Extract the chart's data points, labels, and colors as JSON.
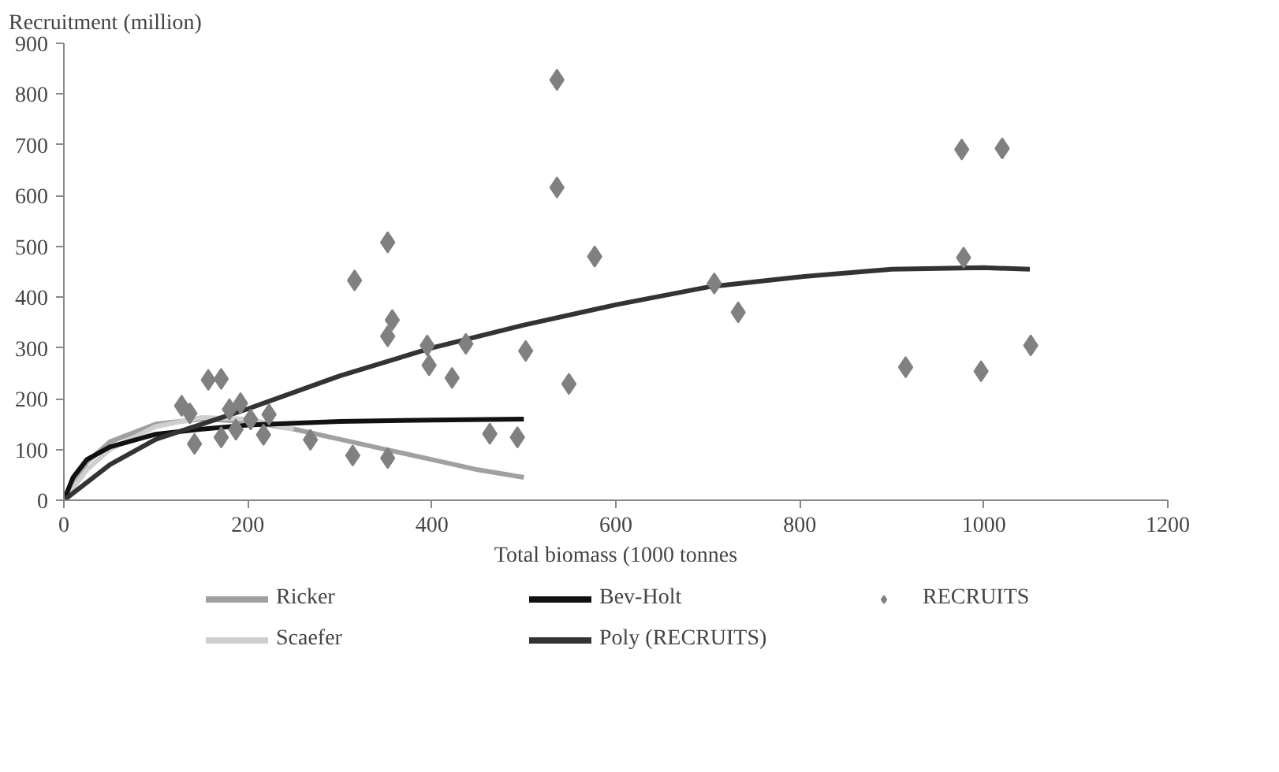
{
  "chart_data": {
    "type": "line",
    "xlabel": "Total biomass (1000 tonnes",
    "ylabel": "Recruitment (million)",
    "xlim": [
      0,
      1200
    ],
    "ylim": [
      0,
      900
    ],
    "xticks": [
      0,
      200,
      400,
      600,
      800,
      1000,
      1200
    ],
    "yticks": [
      0,
      100,
      200,
      300,
      400,
      500,
      600,
      700,
      800,
      900
    ],
    "grid": false,
    "legend": "bottom",
    "series": [
      {
        "name": "Ricker",
        "type": "line",
        "color": "#a0a0a0",
        "x": [
          0,
          25,
          50,
          100,
          150,
          200,
          250,
          300,
          350,
          400,
          450,
          500
        ],
        "values": [
          0,
          75,
          115,
          150,
          160,
          155,
          140,
          120,
          100,
          80,
          60,
          45
        ]
      },
      {
        "name": "Scaefer",
        "type": "line",
        "color": "#cfcfcf",
        "x": [
          0,
          25,
          50,
          100,
          150,
          200,
          250
        ],
        "values": [
          0,
          60,
          100,
          145,
          163,
          160,
          140
        ]
      },
      {
        "name": "Bev-Holt",
        "type": "line",
        "color": "#111111",
        "x": [
          0,
          10,
          25,
          50,
          100,
          150,
          200,
          300,
          400,
          500
        ],
        "values": [
          0,
          45,
          80,
          105,
          130,
          140,
          148,
          155,
          158,
          160
        ]
      },
      {
        "name": "Poly (RECRUITS)",
        "type": "line",
        "color": "#333333",
        "x": [
          0,
          50,
          100,
          200,
          300,
          400,
          500,
          600,
          700,
          800,
          900,
          1000,
          1050
        ],
        "values": [
          0,
          70,
          120,
          180,
          245,
          300,
          345,
          385,
          420,
          440,
          455,
          458,
          455
        ]
      },
      {
        "name": "RECRUITS",
        "type": "scatter",
        "marker": "diamond",
        "color": "#808080",
        "x": [
          128,
          137,
          142,
          157,
          171,
          171,
          180,
          192,
          187,
          203,
          217,
          223,
          268,
          316,
          314,
          352,
          357,
          352,
          352,
          395,
          397,
          422,
          437,
          463,
          493,
          502,
          536,
          536,
          549,
          577,
          707,
          733,
          915,
          976,
          1020,
          978,
          997,
          1051
        ],
        "values": [
          186,
          171,
          111,
          237,
          239,
          124,
          179,
          191,
          139,
          159,
          129,
          169,
          119,
          433,
          88,
          508,
          355,
          323,
          83,
          305,
          266,
          241,
          308,
          131,
          124,
          294,
          828,
          616,
          229,
          480,
          427,
          370,
          262,
          691,
          693,
          478,
          254,
          305
        ]
      }
    ]
  }
}
